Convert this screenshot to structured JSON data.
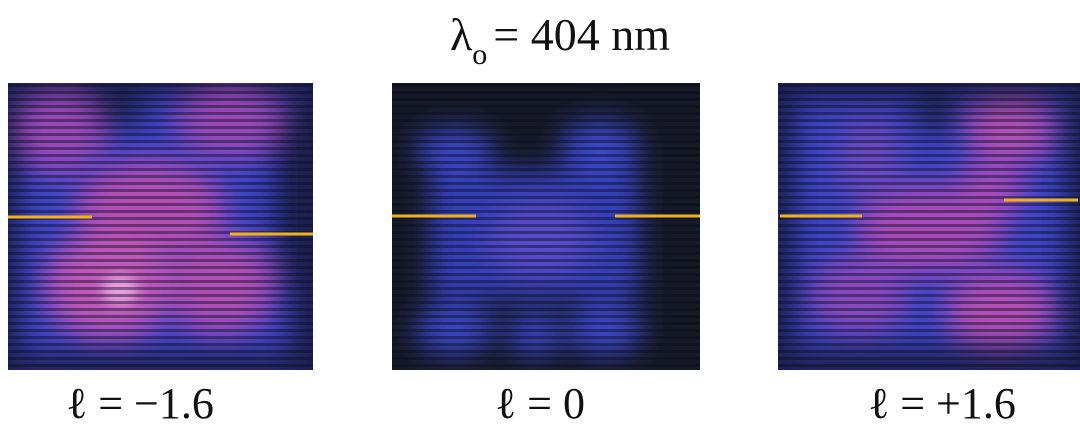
{
  "title": {
    "symbol": "λ",
    "subscript": "o",
    "rest": "= 404 nm"
  },
  "panels": [
    {
      "label": "ℓ = −1.6"
    },
    {
      "label": "ℓ = 0"
    },
    {
      "label": "ℓ = +1.6"
    }
  ]
}
